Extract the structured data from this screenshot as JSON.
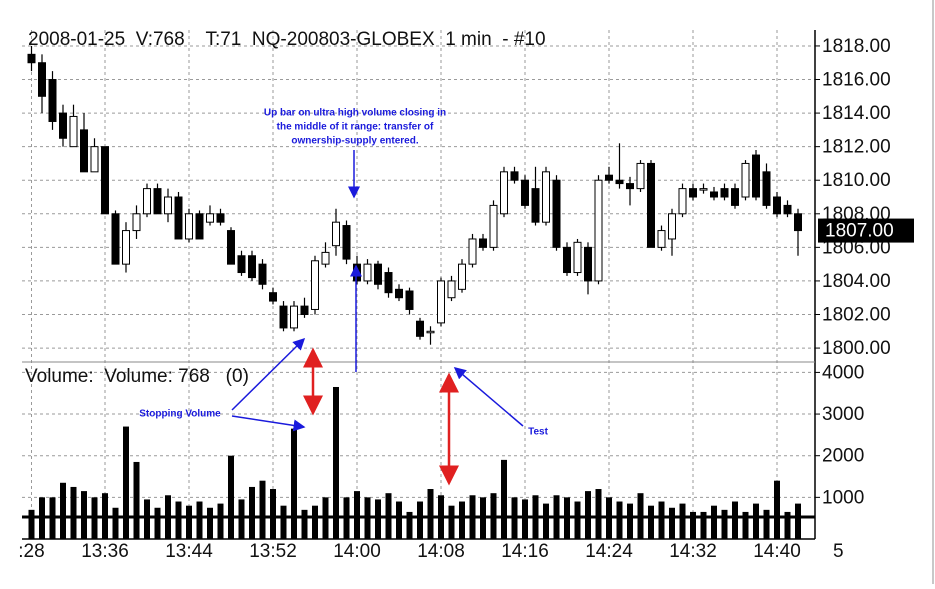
{
  "chart_data": [
    {
      "type": "candlestick",
      "title": "2008-01-25  V:768    T:71  NQ-200803-GLOBEX  1 min  - #10",
      "categories": [
        ":28",
        null,
        null,
        null,
        null,
        null,
        null,
        "13:36",
        null,
        null,
        null,
        null,
        null,
        null,
        null,
        "13:44",
        null,
        null,
        null,
        null,
        null,
        null,
        null,
        "13:52",
        null,
        null,
        null,
        null,
        null,
        null,
        null,
        "14:00",
        null,
        null,
        null,
        null,
        null,
        null,
        null,
        "14:08",
        null,
        null,
        null,
        null,
        null,
        null,
        null,
        "14:16",
        null,
        null,
        null,
        null,
        null,
        null,
        null,
        "14:24",
        null,
        null,
        null,
        null,
        null,
        null,
        null,
        "14:32",
        null,
        null,
        null,
        null,
        null,
        null,
        null,
        "14:40",
        null,
        null
      ],
      "open": [
        1817.5,
        1817,
        1816,
        1814,
        1812,
        1813,
        1810.5,
        1812,
        1808,
        1805,
        1807,
        1808,
        1809.5,
        1808,
        1809,
        1806.5,
        1808,
        1807.5,
        1808,
        1807,
        1805.5,
        1805.5,
        1805,
        1803.3,
        1802.5,
        1801.2,
        1802.5,
        1802.3,
        1805,
        1806.1,
        1807.3,
        1805,
        1804,
        1805,
        1804.5,
        1803.5,
        1803.4,
        1801.6,
        1801,
        1801.5,
        1803,
        1803.5,
        1805,
        1806.5,
        1806,
        1808,
        1810.5,
        1810,
        1809.5,
        1807.5,
        1810,
        1806,
        1804.5,
        1806,
        1804,
        1810.3,
        1810,
        1809.8,
        1809.5,
        1811,
        1806,
        1806.5,
        1808,
        1809.5,
        1809.5,
        1809.3,
        1809.5,
        1809.5,
        1809,
        1811.5,
        1810.5,
        1809,
        1808.5,
        1808
      ],
      "high": [
        1818,
        1817.5,
        1816.5,
        1814.5,
        1814.5,
        1814,
        1812.5,
        1812,
        1808.2,
        1807.5,
        1808.5,
        1809.8,
        1809.8,
        1809.5,
        1809.3,
        1808.3,
        1808.2,
        1808.5,
        1808.3,
        1807.2,
        1805.8,
        1805.8,
        1805.3,
        1803.6,
        1802.8,
        1802.8,
        1803,
        1805.5,
        1806.3,
        1808.3,
        1807.6,
        1805.5,
        1805.3,
        1805.2,
        1804.8,
        1803.8,
        1803.6,
        1801.8,
        1801.3,
        1804.2,
        1804.3,
        1805.3,
        1806.8,
        1806.8,
        1808.8,
        1810.8,
        1810.8,
        1810.3,
        1810.8,
        1810.8,
        1810.3,
        1806.3,
        1806.5,
        1806.3,
        1810.3,
        1810.8,
        1812.2,
        1810.2,
        1811.2,
        1811.2,
        1807.3,
        1808.3,
        1809.8,
        1809.8,
        1809.8,
        1809.6,
        1809.8,
        1809.8,
        1811.2,
        1811.8,
        1811,
        1809.3,
        1808.8,
        1808.3
      ],
      "low": [
        1816.5,
        1814,
        1813,
        1812,
        1812,
        1810.5,
        1810.5,
        1808,
        1805,
        1804.5,
        1806.5,
        1807.8,
        1808,
        1807.5,
        1806.5,
        1806.3,
        1806.5,
        1807.3,
        1807.3,
        1805,
        1804.3,
        1804,
        1803.5,
        1802.6,
        1801,
        1801,
        1801.8,
        1802,
        1804.8,
        1805.5,
        1805,
        1803.8,
        1803.8,
        1803.5,
        1803,
        1802.8,
        1802,
        1800.5,
        1800.2,
        1801.3,
        1802.8,
        1803.3,
        1804.8,
        1805.8,
        1805.8,
        1807.8,
        1809.8,
        1808.3,
        1807.3,
        1807.3,
        1805.8,
        1804.3,
        1804.3,
        1803.2,
        1803.8,
        1809.8,
        1809.5,
        1808.5,
        1809.3,
        1806,
        1805.8,
        1805.5,
        1807.8,
        1808.8,
        1809.2,
        1808.8,
        1808.8,
        1808.3,
        1808.8,
        1808.8,
        1808.3,
        1807.8,
        1807.8,
        1805.5
      ],
      "close": [
        1817,
        1815,
        1813.5,
        1812.5,
        1813.8,
        1810.5,
        1812,
        1808,
        1805,
        1807,
        1808,
        1809.5,
        1808,
        1809,
        1806.5,
        1808,
        1806.5,
        1808,
        1807.5,
        1805,
        1804.5,
        1804.2,
        1803.8,
        1802.8,
        1801.2,
        1802.5,
        1802,
        1805.2,
        1805.7,
        1807.5,
        1805.3,
        1804,
        1805,
        1803.8,
        1803.3,
        1803,
        1802.3,
        1800.7,
        1801,
        1804,
        1804,
        1805,
        1806.5,
        1806,
        1808.5,
        1810.5,
        1810,
        1808.5,
        1807.5,
        1810.5,
        1806,
        1804.5,
        1806.3,
        1804,
        1810,
        1810,
        1809.8,
        1809.5,
        1811,
        1806,
        1807,
        1808,
        1809.5,
        1809,
        1809.5,
        1809,
        1809,
        1808.5,
        1811,
        1809,
        1808.5,
        1808,
        1808,
        1807
      ],
      "ylim": [
        1799.17,
        1818.95
      ],
      "yticks": [
        {
          "value": 1800,
          "label": "1800.00"
        },
        {
          "value": 1802,
          "label": "1802.00"
        },
        {
          "value": 1804,
          "label": "1804.00"
        },
        {
          "value": 1806,
          "label": "1806.00"
        },
        {
          "value": 1808,
          "label": "1808.00"
        },
        {
          "value": 1810,
          "label": "1810.00"
        },
        {
          "value": 1812,
          "label": "1812.00"
        },
        {
          "value": 1814,
          "label": "1814.00"
        },
        {
          "value": 1816,
          "label": "1816.00"
        },
        {
          "value": 1818,
          "label": "1818.00"
        }
      ],
      "last_price": {
        "value": 1807,
        "label": "1807.00"
      },
      "grid": true,
      "annotations": [
        "Up bar on ultra high volume closing in",
        "the middle of it range: transfer of",
        "ownership-supply entered.",
        "Stopping Volume",
        "Test"
      ],
      "corner_label": "5"
    },
    {
      "type": "bar",
      "title": "Volume:  Volume: 768   (0)",
      "values": [
        700,
        1000,
        1000,
        1350,
        1250,
        1150,
        1000,
        1100,
        750,
        2700,
        1850,
        950,
        750,
        1050,
        900,
        800,
        900,
        750,
        850,
        2000,
        950,
        1250,
        1400,
        1200,
        800,
        2650,
        700,
        800,
        1000,
        3650,
        1000,
        1150,
        1000,
        950,
        1100,
        900,
        650,
        900,
        1200,
        1050,
        800,
        900,
        1050,
        1000,
        1100,
        1900,
        1000,
        950,
        1050,
        850,
        1050,
        1000,
        900,
        1150,
        1200,
        1000,
        900,
        850,
        1100,
        800,
        900,
        750,
        850,
        650,
        650,
        800,
        700,
        900,
        650,
        850,
        700,
        1400,
        650,
        850
      ],
      "ylim": [
        0,
        4250
      ],
      "yticks": [
        1000,
        2000,
        3000,
        4000
      ],
      "grid": true
    }
  ]
}
